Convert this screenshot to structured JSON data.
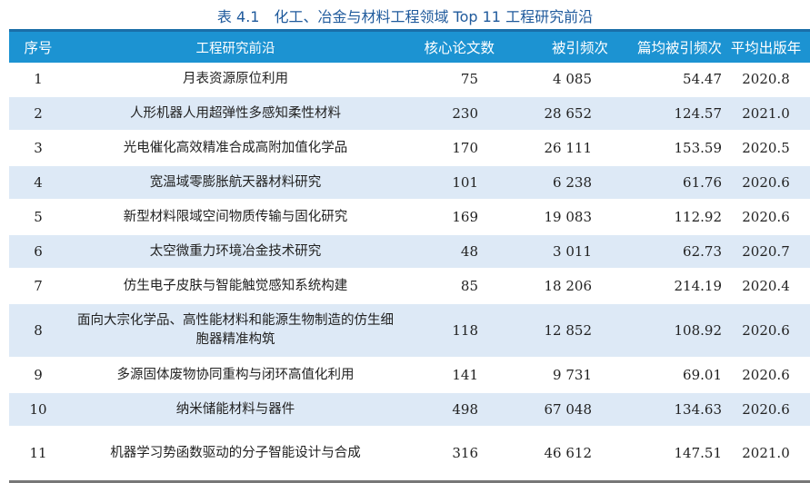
{
  "caption": "表 4.1　化工、冶金与材料工程领域 Top 11 工程研究前沿",
  "headers": [
    "序号",
    "工程研究前沿",
    "核心论文数",
    "被引频次",
    "篇均被引频次",
    "平均出版年"
  ],
  "rows": [
    [
      "1",
      "月表资源原位利用",
      "75",
      "4 085",
      "54.47",
      "2020.8"
    ],
    [
      "2",
      "人形机器人用超弹性多感知柔性材料",
      "230",
      "28 652",
      "124.57",
      "2021.0"
    ],
    [
      "3",
      "光电催化高效精准合成高附加值化学品",
      "170",
      "26 111",
      "153.59",
      "2020.5"
    ],
    [
      "4",
      "宽温域零膨胀航天器材料研究",
      "101",
      "6 238",
      "61.76",
      "2020.6"
    ],
    [
      "5",
      "新型材料限域空间物质传输与固化研究",
      "169",
      "19 083",
      "112.92",
      "2020.6"
    ],
    [
      "6",
      "太空微重力环境冶金技术研究",
      "48",
      "3 011",
      "62.73",
      "2020.7"
    ],
    [
      "7",
      "仿生电子皮肤与智能触觉感知系统构建",
      "85",
      "18 206",
      "214.19",
      "2020.4"
    ],
    [
      "8",
      "面向大宗化学品、高性能材料和能源生物制造的仿生细胞器精准构筑",
      "118",
      "12 852",
      "108.92",
      "2020.6"
    ],
    [
      "9",
      "多源固体废物协同重构与闭环高值化利用",
      "141",
      "9 731",
      "69.01",
      "2020.6"
    ],
    [
      "10",
      "纳米储能材料与器件",
      "498",
      "67 048",
      "134.63",
      "2020.6"
    ],
    [
      "11",
      "机器学习势函数驱动的分子智能设计与合成",
      "316",
      "46 612",
      "147.51",
      "2021.0"
    ]
  ],
  "highlight_row": 2
}
